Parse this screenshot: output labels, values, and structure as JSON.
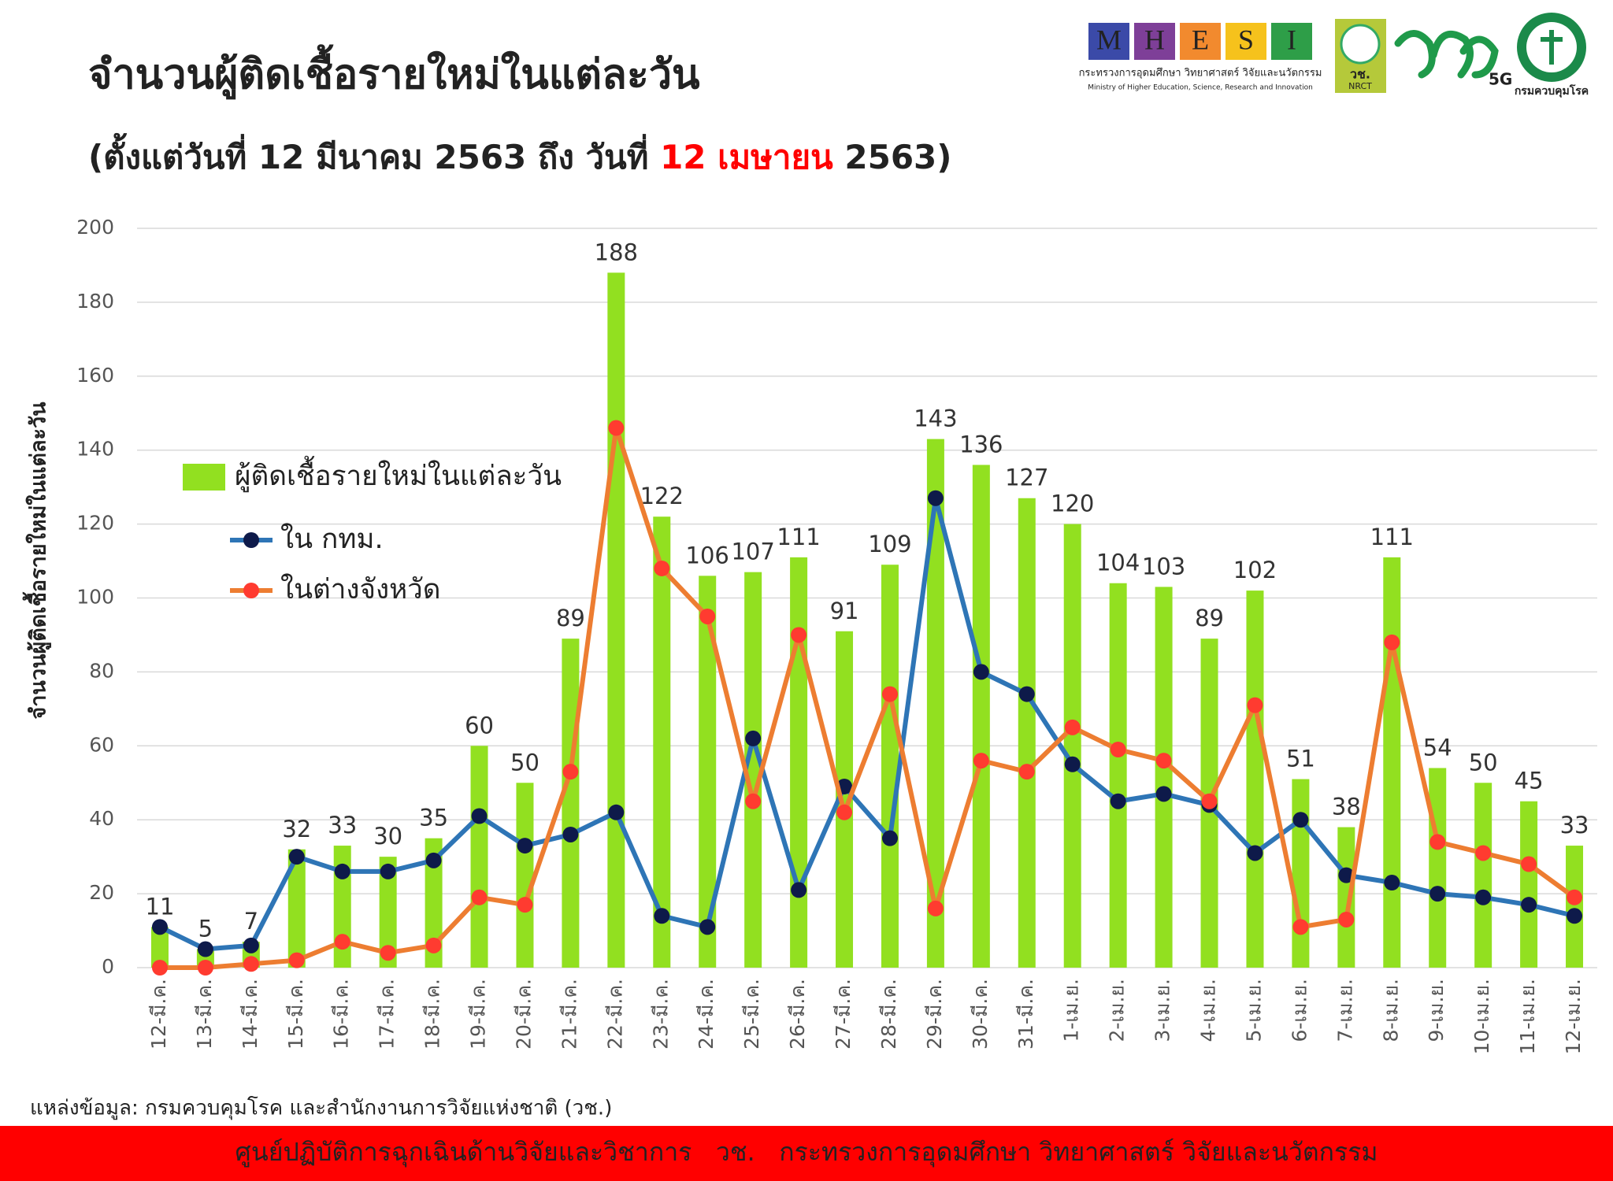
{
  "chart_data": {
    "type": "bar",
    "title": "จำนวนผู้ติดเชื้อรายใหม่ในแต่ละวัน",
    "subtitle": [
      "(ตั้งแต่วันที่ 12 มีนาคม 2563 ถึง วันที่ ",
      "12 เมษายน",
      " 2563)"
    ],
    "subtitle_highlight_color": "#ff0000",
    "y_label": "จำนวนผู้ติดเชื้อรายใหม่ในแต่ละวัน",
    "categories": [
      "12-มี.ค.",
      "13-มี.ค.",
      "14-มี.ค.",
      "15-มี.ค.",
      "16-มี.ค.",
      "17-มี.ค.",
      "18-มี.ค.",
      "19-มี.ค.",
      "20-มี.ค.",
      "21-มี.ค.",
      "22-มี.ค.",
      "23-มี.ค.",
      "24-มี.ค.",
      "25-มี.ค.",
      "26-มี.ค.",
      "27-มี.ค.",
      "28-มี.ค.",
      "29-มี.ค.",
      "30-มี.ค.",
      "31-มี.ค.",
      "1-เม.ย.",
      "2-เม.ย.",
      "3-เม.ย.",
      "4-เม.ย.",
      "5-เม.ย.",
      "6-เม.ย.",
      "7-เม.ย.",
      "8-เม.ย.",
      "9-เม.ย.",
      "10-เม.ย.",
      "11-เม.ย.",
      "12-เม.ย."
    ],
    "series": [
      {
        "name": "ผู้ติดเชื้อรายใหม่ในแต่ละวัน",
        "type": "bar",
        "color": "#92e020",
        "values": [
          11,
          5,
          7,
          32,
          33,
          30,
          35,
          60,
          50,
          89,
          188,
          122,
          106,
          107,
          111,
          91,
          109,
          143,
          136,
          127,
          120,
          104,
          103,
          89,
          102,
          51,
          38,
          111,
          54,
          50,
          45,
          33
        ]
      },
      {
        "name": "ใน กทม.",
        "type": "line",
        "color": "#2e75b6",
        "marker_color": "#0e1a4a",
        "values": [
          11,
          5,
          6,
          30,
          26,
          26,
          29,
          41,
          33,
          36,
          42,
          14,
          11,
          62,
          21,
          49,
          35,
          127,
          80,
          74,
          55,
          45,
          47,
          44,
          31,
          40,
          25,
          23,
          20,
          19,
          17,
          14
        ]
      },
      {
        "name": "ในต่างจังหวัด",
        "type": "line",
        "color": "#ed7d31",
        "marker_color": "#ff3b30",
        "values": [
          0,
          0,
          1,
          2,
          7,
          4,
          6,
          19,
          17,
          53,
          146,
          108,
          95,
          45,
          90,
          42,
          74,
          16,
          56,
          53,
          65,
          59,
          56,
          45,
          71,
          11,
          13,
          88,
          34,
          31,
          28,
          19
        ]
      }
    ],
    "ylim": [
      0,
      200
    ],
    "yticks": [
      0,
      20,
      40,
      60,
      80,
      100,
      120,
      140,
      160,
      180,
      200
    ],
    "grid": true,
    "legend": "left"
  },
  "logos": {
    "mhesi_letters": [
      "M",
      "H",
      "E",
      "S",
      "I"
    ],
    "mhesi_thai": "กระทรวงการอุดมศึกษา วิทยาศาสตร์ วิจัยและนวัตกรรม",
    "mhesi_english": "Ministry of Higher Education, Science, Research and Innovation",
    "nrct_thai": "วช.",
    "nrct_english": "NRCT",
    "fiveg": "5G",
    "ddc": "กรมควบคุมโรค"
  },
  "source": "แหล่งข้อมูล: กรมควบคุมโรค และสำนักงานการวิจัยแห่งชาติ (วช.)",
  "footer": "ศูนย์ปฏิบัติการฉุกเฉินด้านวิจัยและวิชาการ   วช.   กระทรวงการอุดมศึกษา วิทยาศาสตร์ วิจัยและนวัตกรรม"
}
